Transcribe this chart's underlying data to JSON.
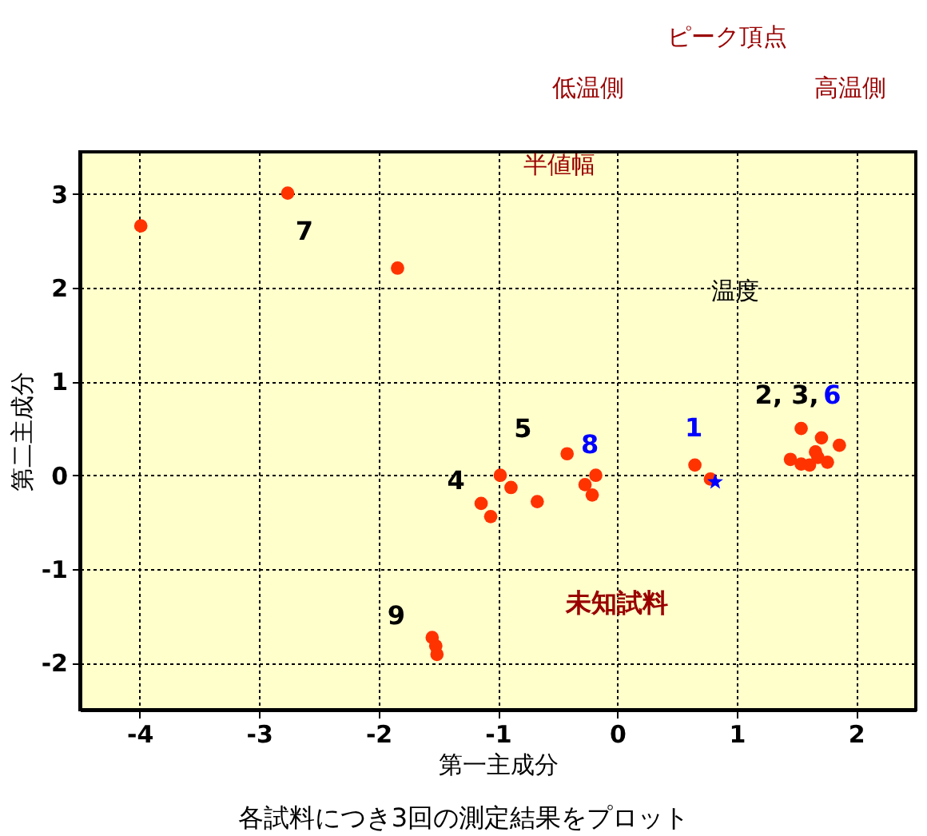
{
  "chart_data": {
    "type": "scatter",
    "xlabel": "第一主成分",
    "ylabel": "第二主成分",
    "xlim": [
      -4.5,
      2.5
    ],
    "ylim": [
      -2.5,
      3.45
    ],
    "xticks": [
      -4,
      -3,
      -2,
      -1,
      0,
      1,
      2
    ],
    "yticks": [
      -2,
      -1,
      0,
      1,
      2,
      3
    ],
    "grid": true,
    "series": [
      {
        "marker": "circle",
        "color": "#ff3300",
        "x": [
          -3.99,
          -2.76,
          -1.84,
          -0.98,
          -0.89,
          -0.42,
          -1.14,
          -1.06,
          -0.67,
          -0.18,
          -0.27,
          -0.21,
          0.65,
          0.78,
          1.54,
          1.71,
          1.86,
          1.66,
          1.68,
          1.45,
          1.54,
          1.76,
          1.61,
          -1.55,
          -1.52,
          -1.51
        ],
        "values": [
          2.66,
          3.01,
          2.21,
          0.0,
          -0.13,
          0.23,
          -0.3,
          -0.44,
          -0.28,
          0.0,
          -0.1,
          -0.21,
          0.11,
          -0.04,
          0.5,
          0.4,
          0.32,
          0.25,
          0.19,
          0.17,
          0.12,
          0.14,
          0.11,
          -1.73,
          -1.82,
          -1.91
        ]
      },
      {
        "marker": "star",
        "color": "#0000ff",
        "x": [
          0.82
        ],
        "values": [
          -0.07
        ]
      }
    ],
    "annotations": [
      "7",
      "5",
      "8",
      "4",
      "1",
      "2, 3,",
      "6",
      "9",
      "未知試料",
      "ピーク頂点",
      "低温側",
      "高温側",
      "半値幅",
      "温度",
      "各試料につき3回の測定結果をプロット"
    ]
  }
}
